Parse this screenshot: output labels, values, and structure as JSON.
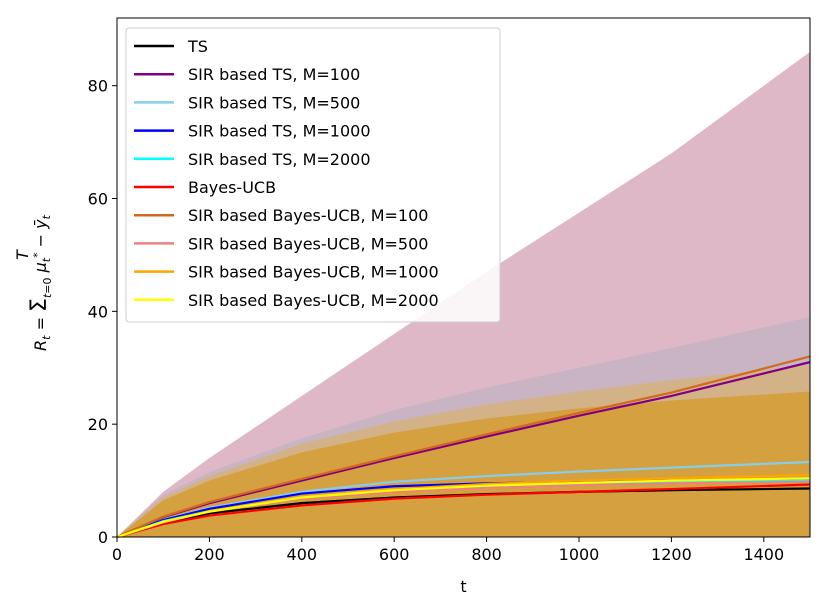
{
  "chart_data": {
    "type": "line",
    "title": "",
    "xlabel": "t",
    "ylabel": "R_t = Σ_{t=0}^{T} μ*_t − ȳ_t",
    "xlim": [
      0,
      1500
    ],
    "ylim": [
      0,
      92
    ],
    "xticks": [
      0,
      200,
      400,
      600,
      800,
      1000,
      1200,
      1400
    ],
    "yticks": [
      0,
      20,
      40,
      60,
      80
    ],
    "grid": false,
    "legend_position": "top-left",
    "series": [
      {
        "name": "TS",
        "color": "#000000",
        "x": [
          0,
          100,
          200,
          400,
          600,
          800,
          1000,
          1200,
          1500
        ],
        "y": [
          0,
          2.5,
          4.2,
          6.0,
          7.0,
          7.6,
          8.0,
          8.3,
          8.6
        ]
      },
      {
        "name": "SIR based TS, M=100",
        "color": "#800080",
        "x": [
          0,
          100,
          200,
          400,
          600,
          800,
          1000,
          1200,
          1500
        ],
        "y": [
          0,
          3.5,
          6.0,
          10.0,
          14.0,
          17.8,
          21.5,
          25.0,
          31.0
        ]
      },
      {
        "name": "SIR based TS, M=500",
        "color": "#87ceeb",
        "x": [
          0,
          100,
          200,
          400,
          600,
          800,
          1000,
          1200,
          1500
        ],
        "y": [
          0,
          3.0,
          5.2,
          8.0,
          9.8,
          10.8,
          11.6,
          12.3,
          13.3
        ]
      },
      {
        "name": "SIR based TS, M=1000",
        "color": "#0000ff",
        "x": [
          0,
          100,
          200,
          400,
          600,
          800,
          1000,
          1200,
          1500
        ],
        "y": [
          0,
          3.0,
          5.0,
          7.7,
          9.0,
          9.5,
          9.8,
          10.0,
          10.2
        ]
      },
      {
        "name": "SIR based TS, M=2000",
        "color": "#00ffff",
        "x": [
          0,
          100,
          200,
          400,
          600,
          800,
          1000,
          1200,
          1500
        ],
        "y": [
          0,
          2.8,
          4.6,
          7.0,
          8.3,
          9.0,
          9.5,
          9.8,
          10.0
        ]
      },
      {
        "name": "Bayes-UCB",
        "color": "#ff0000",
        "x": [
          0,
          100,
          200,
          400,
          600,
          800,
          1000,
          1200,
          1500
        ],
        "y": [
          0,
          2.3,
          3.8,
          5.6,
          6.8,
          7.5,
          8.0,
          8.5,
          9.3
        ]
      },
      {
        "name": "SIR based Bayes-UCB, M=100",
        "color": "#d2691e",
        "x": [
          0,
          100,
          200,
          400,
          600,
          800,
          1000,
          1200,
          1500
        ],
        "y": [
          0,
          3.6,
          6.2,
          10.3,
          14.3,
          18.2,
          22.0,
          25.6,
          32.0
        ]
      },
      {
        "name": "SIR based Bayes-UCB, M=500",
        "color": "#f08080",
        "x": [
          0,
          100,
          200,
          400,
          600,
          800,
          1000,
          1200,
          1500
        ],
        "y": [
          0,
          2.6,
          4.5,
          6.8,
          8.0,
          8.7,
          9.2,
          9.5,
          9.8
        ]
      },
      {
        "name": "SIR based Bayes-UCB, M=1000",
        "color": "#ffa500",
        "x": [
          0,
          100,
          200,
          400,
          600,
          800,
          1000,
          1200,
          1500
        ],
        "y": [
          0,
          2.7,
          4.6,
          7.1,
          8.5,
          9.4,
          10.0,
          10.4,
          11.0
        ]
      },
      {
        "name": "SIR based Bayes-UCB, M=2000",
        "color": "#ffff00",
        "x": [
          0,
          100,
          200,
          400,
          600,
          800,
          1000,
          1200,
          1500
        ],
        "y": [
          0,
          2.7,
          4.5,
          7.0,
          8.3,
          9.1,
          9.6,
          10.0,
          10.4
        ]
      }
    ],
    "bands": [
      {
        "color": "#d4a0b4",
        "opacity": 0.75,
        "x": [
          0,
          100,
          200,
          400,
          600,
          800,
          1000,
          1200,
          1500
        ],
        "upper": [
          0,
          8.0,
          14.0,
          25.0,
          36.0,
          47.0,
          57.5,
          68.0,
          86.0
        ],
        "lower": [
          0,
          0,
          0,
          0,
          0,
          0,
          0,
          0,
          0
        ]
      },
      {
        "color": "#b0b0c0",
        "opacity": 0.45,
        "x": [
          0,
          100,
          200,
          400,
          600,
          800,
          1000,
          1200,
          1500
        ],
        "upper": [
          0,
          7.5,
          11.5,
          17.5,
          22.5,
          26.5,
          30.0,
          33.5,
          39.0
        ],
        "lower": [
          0,
          0,
          0,
          0,
          0,
          0,
          0,
          0,
          0
        ]
      },
      {
        "color": "#e0b040",
        "opacity": 0.45,
        "x": [
          0,
          100,
          200,
          400,
          600,
          800,
          1000,
          1200,
          1500
        ],
        "upper": [
          0,
          7.0,
          10.8,
          16.5,
          20.5,
          23.5,
          25.8,
          27.8,
          30.5
        ],
        "lower": [
          0,
          0,
          0,
          0,
          0,
          0,
          0,
          0,
          0
        ]
      },
      {
        "color": "#d4a040",
        "opacity": 1.0,
        "x": [
          0,
          100,
          200,
          400,
          600,
          800,
          1000,
          1200,
          1500
        ],
        "upper": [
          0,
          6.5,
          10.0,
          15.0,
          18.5,
          21.0,
          22.8,
          24.2,
          25.8
        ],
        "lower": [
          0,
          0,
          0,
          0,
          0,
          0,
          0,
          0,
          0
        ]
      }
    ]
  }
}
